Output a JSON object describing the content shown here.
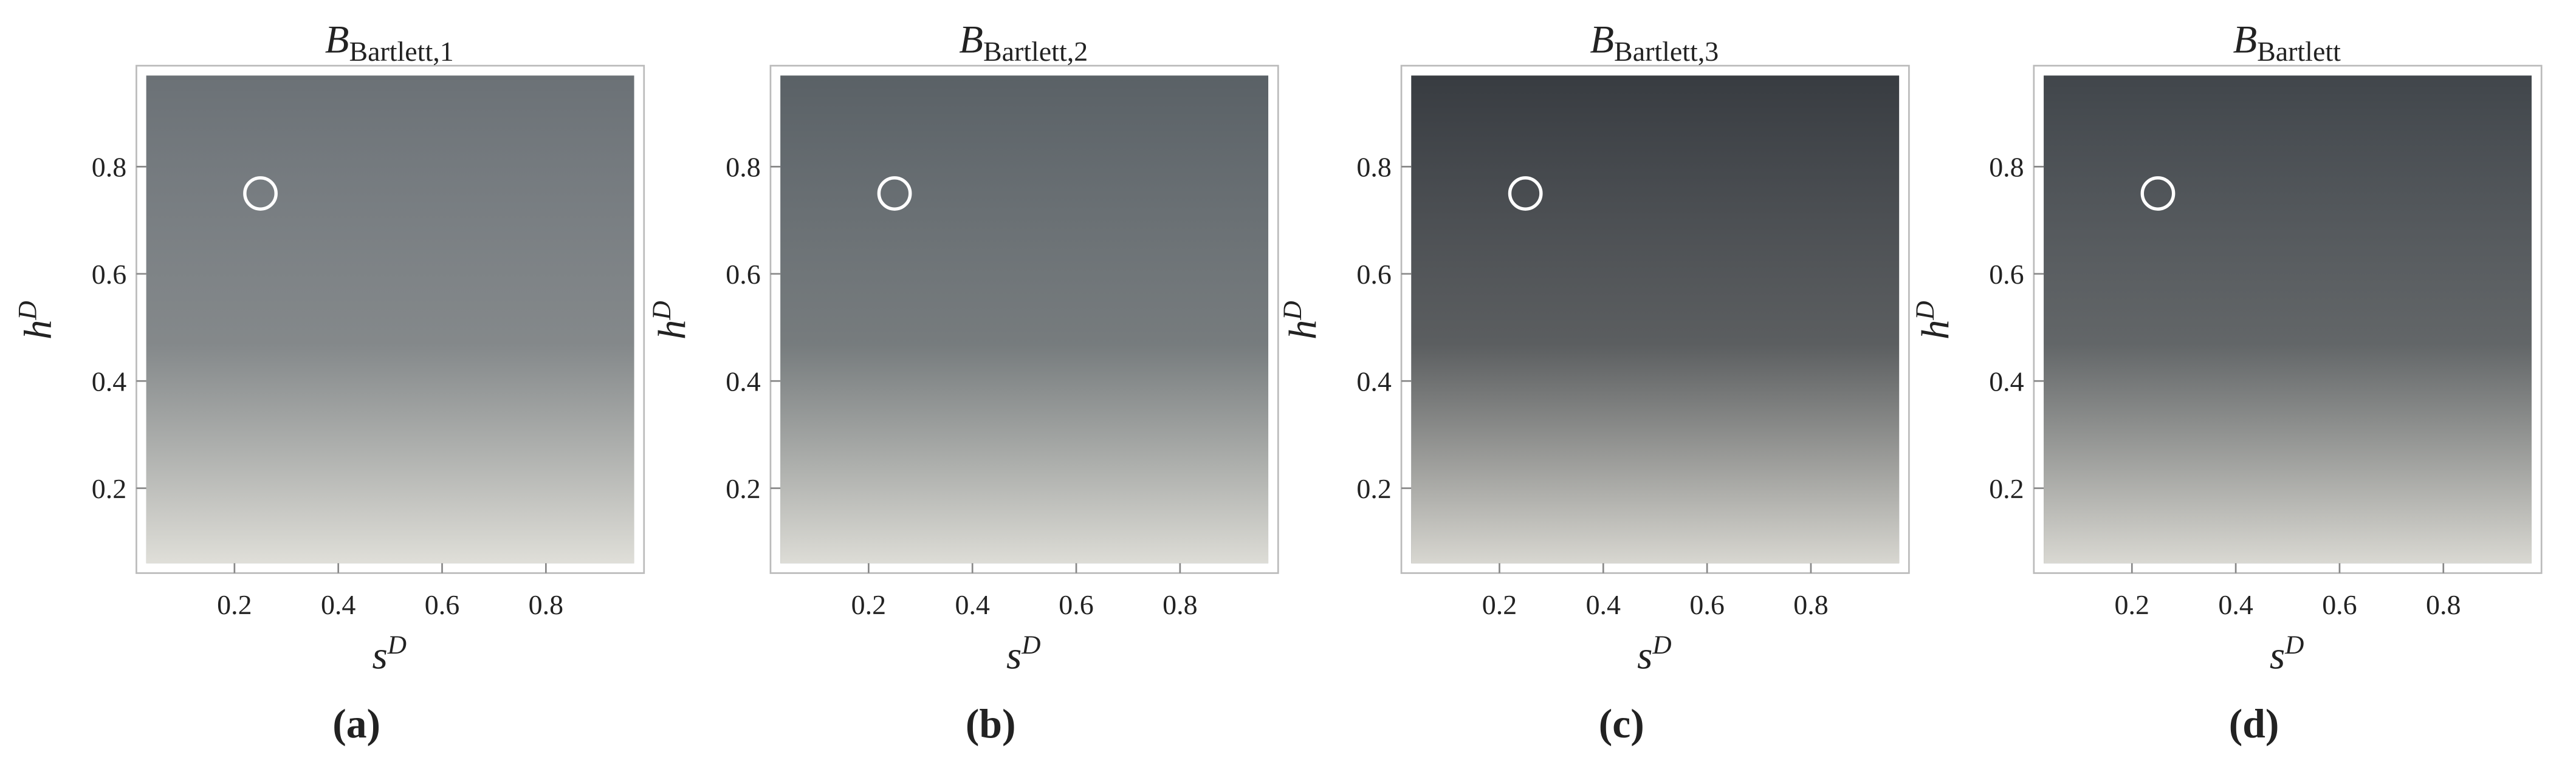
{
  "chart_data": [
    {
      "type": "contour",
      "title": "B",
      "title_subscript": "Bartlett,1",
      "xlabel": "s",
      "xlabel_sup": "D",
      "ylabel": "h",
      "ylabel_sup": "D",
      "panel_label": "(a)",
      "xlim": [
        0.03,
        0.97
      ],
      "ylim": [
        0.06,
        0.97
      ],
      "xticks": [
        0.2,
        0.4,
        0.6,
        0.8
      ],
      "yticks": [
        0.2,
        0.4,
        0.6,
        0.8
      ],
      "color": "#6b7176",
      "marker": {
        "x": 0.25,
        "y": 0.75
      }
    },
    {
      "type": "contour",
      "title": "B",
      "title_subscript": "Bartlett,2",
      "xlabel": "s",
      "xlabel_sup": "D",
      "ylabel": "h",
      "ylabel_sup": "D",
      "panel_label": "(b)",
      "xlim": [
        0.03,
        0.97
      ],
      "ylim": [
        0.06,
        0.97
      ],
      "xticks": [
        0.2,
        0.4,
        0.6,
        0.8
      ],
      "yticks": [
        0.2,
        0.4,
        0.6,
        0.8
      ],
      "color": "#5a6166",
      "marker": {
        "x": 0.25,
        "y": 0.75
      }
    },
    {
      "type": "contour",
      "title": "B",
      "title_subscript": "Bartlett,3",
      "xlabel": "s",
      "xlabel_sup": "D",
      "ylabel": "h",
      "ylabel_sup": "D",
      "panel_label": "(c)",
      "xlim": [
        0.03,
        0.97
      ],
      "ylim": [
        0.06,
        0.97
      ],
      "xticks": [
        0.2,
        0.4,
        0.6,
        0.8
      ],
      "yticks": [
        0.2,
        0.4,
        0.6,
        0.8
      ],
      "color": "#383c41",
      "marker": {
        "x": 0.25,
        "y": 0.75
      }
    },
    {
      "type": "contour",
      "title": "B",
      "title_subscript": "Bartlett",
      "xlabel": "s",
      "xlabel_sup": "D",
      "ylabel": "h",
      "ylabel_sup": "D",
      "panel_label": "(d)",
      "xlim": [
        0.03,
        0.97
      ],
      "ylim": [
        0.06,
        0.97
      ],
      "xticks": [
        0.2,
        0.4,
        0.6,
        0.8
      ],
      "yticks": [
        0.2,
        0.4,
        0.6,
        0.8
      ],
      "color": "#41464b",
      "marker": {
        "x": 0.25,
        "y": 0.75
      }
    }
  ]
}
